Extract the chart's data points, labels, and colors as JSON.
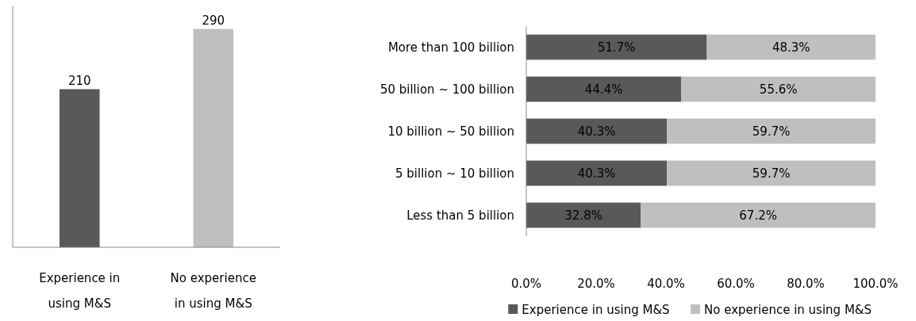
{
  "chart_data": [
    {
      "type": "bar",
      "categories": [
        "Experience in using M&S",
        "No experience in using M&S"
      ],
      "values": [
        210,
        290
      ],
      "colors": [
        "#595959",
        "#bfbfbf"
      ],
      "ylim": [
        0,
        320
      ],
      "tick_labels": "x",
      "data_labels": true
    },
    {
      "type": "bar",
      "orientation": "horizontal",
      "stacked": true,
      "categories": [
        "More than 100 billion",
        "50 billion ~ 100 billion",
        "10 billion ~ 50 billion",
        "5 billion ~ 10 billion",
        "Less than 5 billion"
      ],
      "series": [
        {
          "name": "Experience in using M&S",
          "color": "#595959",
          "values": [
            51.7,
            44.4,
            40.3,
            40.3,
            32.8
          ],
          "value_labels": [
            "51.7%",
            "44.4%",
            "40.3%",
            "40.3%",
            "32.8%"
          ]
        },
        {
          "name": "No experience in using M&S",
          "color": "#bfbfbf",
          "values": [
            48.3,
            55.6,
            59.7,
            59.7,
            67.2
          ],
          "value_labels": [
            "48.3%",
            "55.6%",
            "59.7%",
            "59.7%",
            "67.2%"
          ]
        }
      ],
      "xlim": [
        0,
        100
      ],
      "xticks": [
        {
          "value": 0,
          "label": "0.0%"
        },
        {
          "value": 20,
          "label": "20.0%"
        },
        {
          "value": 40,
          "label": "40.0%"
        },
        {
          "value": 60,
          "label": "60.0%"
        },
        {
          "value": 80,
          "label": "80.0%"
        },
        {
          "value": 100,
          "label": "100.0%"
        }
      ],
      "legend": "bottom"
    }
  ]
}
